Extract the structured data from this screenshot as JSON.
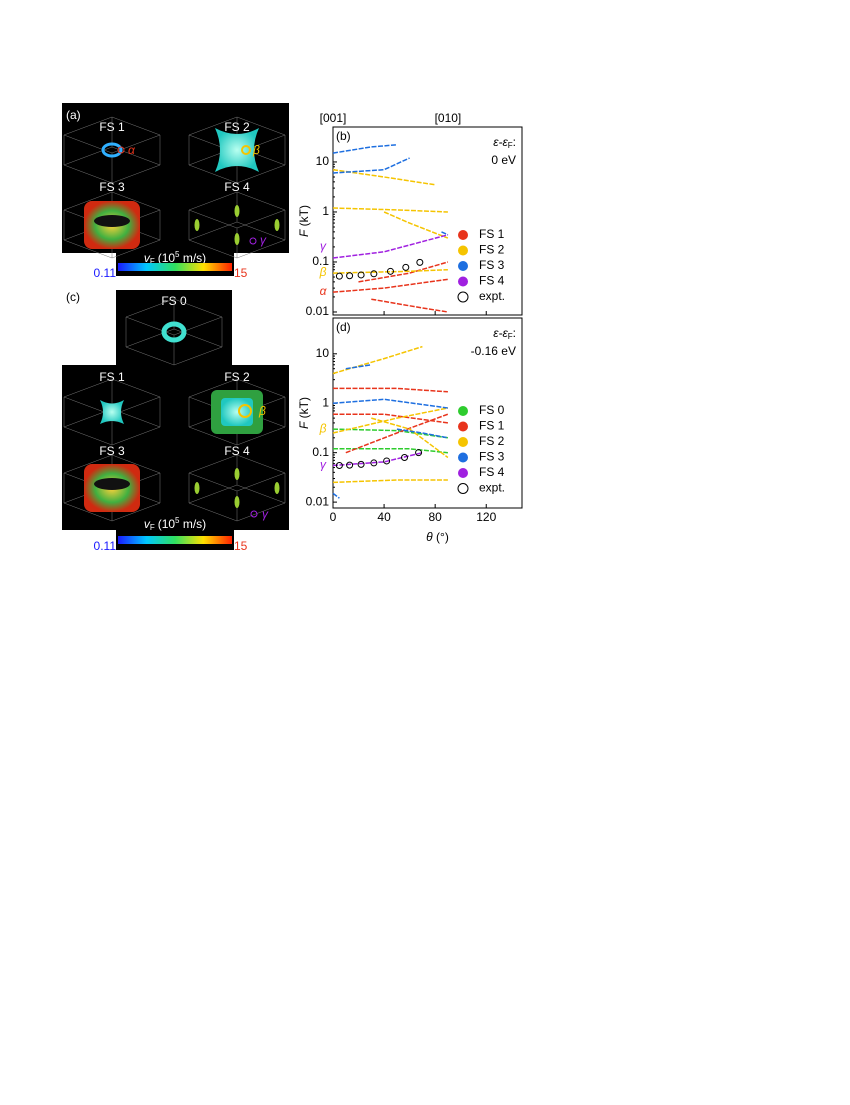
{
  "panels": {
    "a": {
      "label": "(a)",
      "surfaces": [
        "FS 1",
        "FS 2",
        "FS 3",
        "FS 4"
      ],
      "orbits": [
        "α",
        "β",
        "γ"
      ],
      "colorbar": {
        "v": "v",
        "sub": "F",
        "pre": "(10",
        "sup": "5",
        "unit": " m/s)",
        "min": "0.11",
        "max": "15"
      }
    },
    "c": {
      "label": "(c)",
      "surfaces": [
        "FS 0",
        "FS 1",
        "FS 2",
        "FS 3",
        "FS 4"
      ],
      "orbits": [
        "β",
        "γ"
      ],
      "colorbar": {
        "v": "v",
        "sub": "F",
        "pre": "(10",
        "sup": "5",
        "unit": " m/s)",
        "min": "0.11",
        "max": "15"
      }
    }
  },
  "chart_data": [
    {
      "type": "line",
      "panel_label": "(b)",
      "log_y": true,
      "annotation": {
        "a": "ε-ε",
        "sub": "F",
        "colon": ":",
        "value": "0 eV"
      },
      "ylabel": {
        "var": "F",
        "unit": " (kT)"
      },
      "xlim": [
        0,
        148
      ],
      "xticks": [
        0,
        40,
        80,
        120
      ],
      "x2ticks": [
        {
          "value": 0,
          "label": "[001]"
        },
        {
          "value": 90,
          "label": "[010]"
        }
      ],
      "ylim": [
        0.0087,
        50
      ],
      "yticks": [
        0.01,
        0.1,
        1,
        10
      ],
      "greek": [
        {
          "text": "γ",
          "y": 0.2,
          "color": "#a020e0"
        },
        {
          "text": "β",
          "y": 0.06,
          "color": "#f5c400"
        },
        {
          "text": "α",
          "y": 0.025,
          "color": "#e8341c"
        }
      ],
      "series": [
        {
          "name": "FS 1",
          "color": "#e8341c",
          "segments": [
            {
              "x": [
                0,
                40,
                90
              ],
              "values": [
                0.025,
                0.03,
                0.045
              ]
            },
            {
              "x": [
                20,
                60,
                90
              ],
              "values": [
                0.04,
                0.06,
                0.1
              ]
            },
            {
              "x": [
                30,
                70,
                90
              ],
              "values": [
                0.018,
                0.012,
                0.01
              ]
            }
          ]
        },
        {
          "name": "FS 2",
          "color": "#f5c400",
          "segments": [
            {
              "x": [
                0,
                50,
                90
              ],
              "values": [
                1.2,
                1.1,
                1.0
              ]
            },
            {
              "x": [
                0,
                40,
                80
              ],
              "values": [
                7,
                5,
                3.5
              ]
            },
            {
              "x": [
                40,
                60,
                90
              ],
              "values": [
                1.0,
                0.6,
                0.3
              ]
            },
            {
              "x": [
                0,
                60,
                90
              ],
              "values": [
                0.06,
                0.065,
                0.07
              ]
            }
          ]
        },
        {
          "name": "FS 3",
          "color": "#1e6fe0",
          "segments": [
            {
              "x": [
                0,
                40,
                60
              ],
              "values": [
                6,
                7,
                12
              ]
            },
            {
              "x": [
                0,
                30,
                50
              ],
              "values": [
                15,
                20,
                22
              ]
            },
            {
              "x": [
                85,
                90
              ],
              "values": [
                0.4,
                0.35
              ]
            }
          ]
        },
        {
          "name": "FS 4",
          "color": "#a020e0",
          "segments": [
            {
              "x": [
                0,
                40,
                90
              ],
              "values": [
                0.12,
                0.16,
                0.35
              ]
            }
          ]
        }
      ],
      "expt": {
        "name": "expt.",
        "x": [
          5,
          13,
          22,
          32,
          45,
          57,
          68
        ],
        "values": [
          0.052,
          0.053,
          0.055,
          0.058,
          0.065,
          0.078,
          0.098
        ]
      }
    },
    {
      "type": "line",
      "panel_label": "(d)",
      "log_y": true,
      "annotation": {
        "a": "ε-ε",
        "sub": "F",
        "colon": ":",
        "value": "-0.16 eV"
      },
      "ylabel": {
        "var": "F",
        "unit": " (kT)"
      },
      "xlabel": {
        "var": "θ",
        "unit": " (°)"
      },
      "xlim": [
        0,
        148
      ],
      "xticks": [
        0,
        40,
        80,
        120
      ],
      "ylim": [
        0.0076,
        53
      ],
      "yticks": [
        0.01,
        0.1,
        1,
        10
      ],
      "greek": [
        {
          "text": "β",
          "y": 0.3,
          "color": "#f5c400"
        },
        {
          "text": "γ",
          "y": 0.055,
          "color": "#a020e0"
        }
      ],
      "series": [
        {
          "name": "FS 0",
          "color": "#2ecc2e",
          "segments": [
            {
              "x": [
                0,
                50,
                90
              ],
              "values": [
                0.3,
                0.28,
                0.2
              ]
            },
            {
              "x": [
                0,
                60,
                90
              ],
              "values": [
                0.12,
                0.12,
                0.1
              ]
            }
          ]
        },
        {
          "name": "FS 1",
          "color": "#e8341c",
          "segments": [
            {
              "x": [
                0,
                50,
                90
              ],
              "values": [
                2,
                2,
                1.7
              ]
            },
            {
              "x": [
                0,
                40,
                90
              ],
              "values": [
                0.6,
                0.6,
                0.4
              ]
            },
            {
              "x": [
                10,
                50,
                90
              ],
              "values": [
                0.1,
                0.25,
                0.6
              ]
            }
          ]
        },
        {
          "name": "FS 2",
          "color": "#f5c400",
          "segments": [
            {
              "x": [
                0,
                40,
                70
              ],
              "values": [
                4,
                8,
                14
              ]
            },
            {
              "x": [
                0,
                50,
                90
              ],
              "values": [
                0.025,
                0.028,
                0.028
              ]
            },
            {
              "x": [
                30,
                60,
                90
              ],
              "values": [
                0.5,
                0.3,
                0.08
              ]
            },
            {
              "x": [
                0,
                50,
                90
              ],
              "values": [
                0.25,
                0.5,
                0.8
              ]
            }
          ]
        },
        {
          "name": "FS 3",
          "color": "#1e6fe0",
          "segments": [
            {
              "x": [
                0,
                40,
                90
              ],
              "values": [
                1,
                1.2,
                0.8
              ]
            },
            {
              "x": [
                10,
                30
              ],
              "values": [
                5,
                6
              ]
            },
            {
              "x": [
                0,
                5
              ],
              "values": [
                0.015,
                0.012
              ]
            },
            {
              "x": [
                50,
                70,
                90
              ],
              "values": [
                0.3,
                0.25,
                0.2
              ]
            }
          ]
        },
        {
          "name": "FS 4",
          "color": "#a020e0",
          "segments": [
            {
              "x": [
                0,
                40,
                70
              ],
              "values": [
                0.055,
                0.065,
                0.1
              ]
            }
          ]
        }
      ],
      "expt": {
        "name": "expt.",
        "x": [
          5,
          13,
          22,
          32,
          42,
          56,
          67
        ],
        "values": [
          0.055,
          0.056,
          0.058,
          0.062,
          0.068,
          0.08,
          0.1
        ]
      }
    }
  ]
}
